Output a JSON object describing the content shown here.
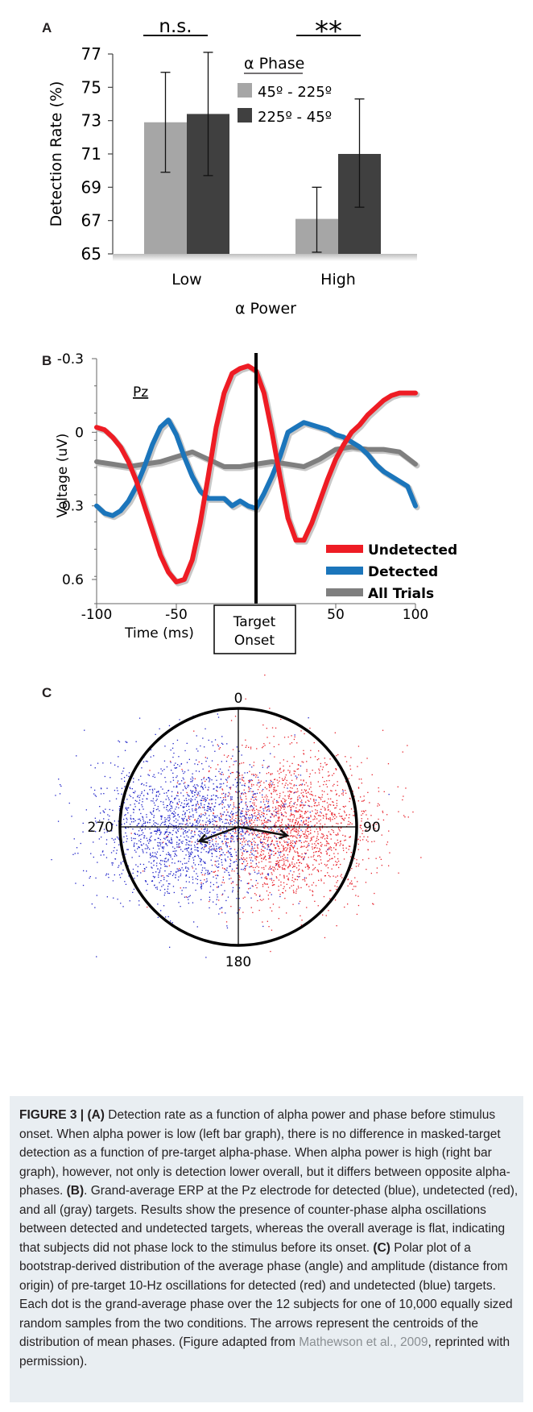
{
  "panel_letters": {
    "a": "A",
    "b": "B",
    "c": "C"
  },
  "chart_data": [
    {
      "type": "bar",
      "panel": "A",
      "ylabel": "Detection Rate (%)",
      "xlabel": "α Power",
      "ylim": [
        65,
        77
      ],
      "yticks": [
        "65",
        "67",
        "69",
        "71",
        "73",
        "75",
        "77"
      ],
      "categories": [
        "Low",
        "High"
      ],
      "legend_title": "α Phase",
      "legend_placement": "top-right",
      "series": [
        {
          "name": "45º - 225º",
          "color": "#a6a6a6",
          "values": [
            72.9,
            67.1
          ],
          "err_low": [
            69.9,
            65.1
          ],
          "err_high": [
            75.9,
            69.0
          ]
        },
        {
          "name": "225º - 45º",
          "color": "#404040",
          "values": [
            73.4,
            71.0
          ],
          "err_low": [
            69.7,
            67.8
          ],
          "err_high": [
            77.1,
            74.3
          ]
        }
      ],
      "significance": [
        "n.s.",
        "**"
      ]
    },
    {
      "type": "line",
      "panel": "B",
      "channel_label": "Pz",
      "ylabel": "Voltage  (uV)",
      "xlabel": "Time (ms)",
      "xlim": [
        -100,
        100
      ],
      "ylim": [
        -0.3,
        0.7
      ],
      "y_inverted": true,
      "xticks": [
        "-100",
        "-50",
        "50",
        "100"
      ],
      "yticks": [
        "-0.3",
        "0",
        "0.3",
        "0.6"
      ],
      "marker_label": [
        "Target",
        "Onset"
      ],
      "marker_x": 0,
      "series": [
        {
          "name": "Undetected",
          "color": "#ee1c24",
          "x": [
            -100,
            -95,
            -90,
            -85,
            -80,
            -75,
            -70,
            -65,
            -60,
            -55,
            -50,
            -45,
            -40,
            -35,
            -30,
            -25,
            -20,
            -15,
            -10,
            -5,
            0,
            5,
            10,
            15,
            20,
            25,
            30,
            35,
            40,
            45,
            50,
            55,
            60,
            65,
            70,
            75,
            80,
            85,
            90,
            95,
            100
          ],
          "y": [
            -0.02,
            -0.01,
            0.02,
            0.06,
            0.12,
            0.2,
            0.3,
            0.4,
            0.5,
            0.57,
            0.61,
            0.6,
            0.52,
            0.37,
            0.18,
            -0.02,
            -0.16,
            -0.24,
            -0.26,
            -0.27,
            -0.25,
            -0.16,
            0.0,
            0.18,
            0.35,
            0.44,
            0.44,
            0.37,
            0.28,
            0.19,
            0.11,
            0.05,
            0.0,
            -0.03,
            -0.07,
            -0.1,
            -0.13,
            -0.15,
            -0.16,
            -0.16,
            -0.16
          ]
        },
        {
          "name": "Detected",
          "color": "#1b75bb",
          "x": [
            -100,
            -95,
            -90,
            -85,
            -80,
            -75,
            -70,
            -65,
            -60,
            -55,
            -50,
            -45,
            -40,
            -35,
            -30,
            -25,
            -20,
            -15,
            -10,
            -5,
            0,
            5,
            10,
            15,
            20,
            25,
            30,
            35,
            40,
            45,
            50,
            55,
            60,
            65,
            70,
            75,
            80,
            85,
            90,
            95,
            100
          ],
          "y": [
            0.3,
            0.33,
            0.34,
            0.32,
            0.28,
            0.22,
            0.14,
            0.05,
            -0.02,
            -0.05,
            0.01,
            0.1,
            0.18,
            0.24,
            0.27,
            0.27,
            0.27,
            0.3,
            0.28,
            0.3,
            0.31,
            0.25,
            0.18,
            0.1,
            0.0,
            -0.02,
            -0.04,
            -0.03,
            -0.02,
            -0.01,
            0.01,
            0.02,
            0.04,
            0.06,
            0.09,
            0.13,
            0.16,
            0.18,
            0.2,
            0.22,
            0.3
          ]
        },
        {
          "name": "All Trials",
          "color": "#7f7f7f",
          "x": [
            -100,
            -90,
            -80,
            -70,
            -60,
            -50,
            -40,
            -30,
            -20,
            -10,
            0,
            10,
            20,
            30,
            40,
            50,
            60,
            70,
            80,
            90,
            100
          ],
          "y": [
            0.12,
            0.13,
            0.14,
            0.13,
            0.12,
            0.1,
            0.08,
            0.11,
            0.14,
            0.14,
            0.13,
            0.12,
            0.13,
            0.14,
            0.11,
            0.07,
            0.06,
            0.07,
            0.07,
            0.08,
            0.13
          ]
        }
      ]
    },
    {
      "type": "scatter",
      "panel": "C",
      "polar": true,
      "angle_labels": [
        "0",
        "90",
        "180",
        "270"
      ],
      "series": [
        {
          "name": "Detected",
          "color": "#e8212a",
          "centroid_angle_deg": 100,
          "centroid_radius": 0.42,
          "n_points": 10000
        },
        {
          "name": "Undetected",
          "color": "#1e22c8",
          "centroid_angle_deg": 250,
          "centroid_radius": 0.35,
          "n_points": 10000
        }
      ]
    }
  ],
  "caption": {
    "figure_label": "FIGURE 3 | ",
    "a_label": "(A)",
    "a_text": " Detection rate as a function of alpha power and phase before stimulus onset. When alpha power is low (left bar graph), there is no difference in masked-target detection as a function of pre-target alpha-phase. When alpha power is high (right bar graph), however, not only is detection lower overall, but it differs between opposite alpha-phases. ",
    "b_label": "(B)",
    "b_text": ". Grand-average ERP at the Pz electrode for detected (blue), undetected (red), and all (gray) targets. Results show the presence of counter-phase alpha oscillations between detected and undetected targets, whereas the overall average is flat, indicating that subjects did not phase lock to the stimulus before its onset. ",
    "c_label": "(C)",
    "c_text": " Polar plot of a bootstrap-derived distribution of the average phase (angle) and amplitude (distance from origin) of pre-target 10-Hz oscillations for detected (red) and undetected (blue) targets. Each dot is the grand-average phase over the 12 subjects for one of 10,000 equally sized random samples from the two conditions. The arrows represent the centroids of the distribution of mean phases. (Figure adapted from ",
    "ref_text": "Mathewson et al., 2009",
    "end_text": ", reprinted with permission)."
  }
}
